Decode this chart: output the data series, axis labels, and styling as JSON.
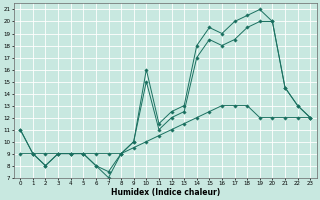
{
  "xlabel": "Humidex (Indice chaleur)",
  "xlim": [
    -0.5,
    23.5
  ],
  "ylim": [
    7,
    21.5
  ],
  "xticks": [
    0,
    1,
    2,
    3,
    4,
    5,
    6,
    7,
    8,
    9,
    10,
    11,
    12,
    13,
    14,
    15,
    16,
    17,
    18,
    19,
    20,
    21,
    22,
    23
  ],
  "yticks": [
    7,
    8,
    9,
    10,
    11,
    12,
    13,
    14,
    15,
    16,
    17,
    18,
    19,
    20,
    21
  ],
  "bg_color": "#c8e8e0",
  "line_color": "#1a7060",
  "grid_color": "#ffffff",
  "series": [
    {
      "x": [
        0,
        1,
        2,
        3,
        4,
        5,
        6,
        7,
        8,
        9,
        10,
        11,
        12,
        13,
        14,
        15,
        16,
        17,
        18,
        19,
        20,
        21,
        22,
        23
      ],
      "y": [
        11,
        9,
        8,
        9,
        9,
        9,
        8,
        7,
        9,
        10,
        16,
        11.5,
        12.5,
        13,
        18,
        19.5,
        19,
        20,
        20.5,
        21,
        20,
        14.5,
        13,
        12
      ]
    },
    {
      "x": [
        0,
        1,
        2,
        3,
        4,
        5,
        6,
        7,
        8,
        9,
        10,
        11,
        12,
        13,
        14,
        15,
        16,
        17,
        18,
        19,
        20,
        21,
        22,
        23
      ],
      "y": [
        11,
        9,
        8,
        9,
        9,
        9,
        8,
        7.5,
        9,
        10,
        15,
        11,
        12,
        12.5,
        17,
        18.5,
        18,
        18.5,
        19.5,
        20,
        20,
        14.5,
        13,
        12
      ]
    },
    {
      "x": [
        0,
        1,
        2,
        3,
        4,
        5,
        6,
        7,
        8,
        9,
        10,
        11,
        12,
        13,
        14,
        15,
        16,
        17,
        18,
        19,
        20,
        21,
        22,
        23
      ],
      "y": [
        9,
        9,
        9,
        9,
        9,
        9,
        9,
        9,
        9,
        9.5,
        10,
        10.5,
        11,
        11.5,
        12,
        12.5,
        13,
        13,
        13,
        12,
        12,
        12,
        12,
        12
      ]
    }
  ]
}
